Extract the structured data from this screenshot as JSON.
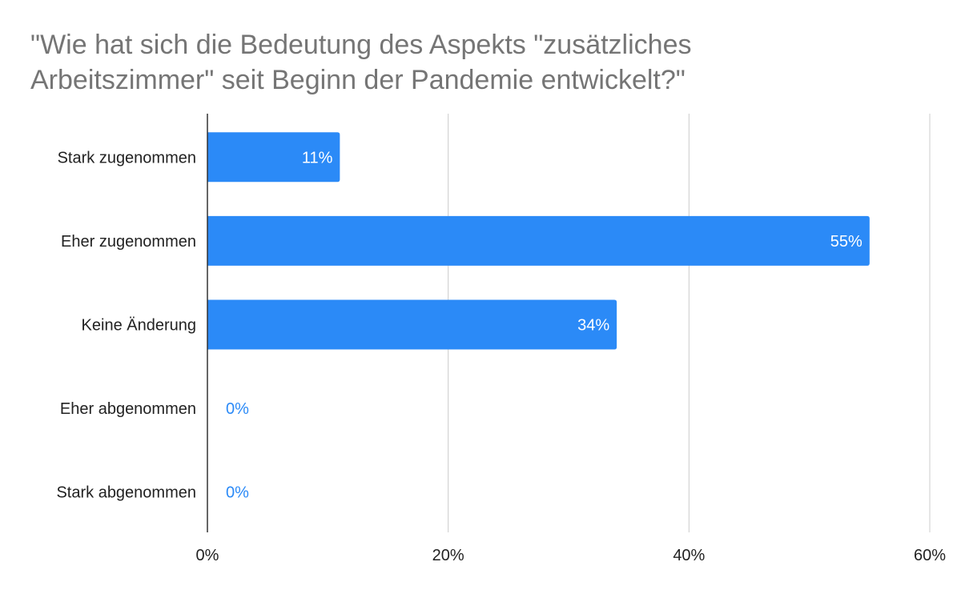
{
  "chart_data": {
    "type": "bar",
    "orientation": "horizontal",
    "title_lines": [
      "\"Wie hat sich die Bedeutung des Aspekts \"zusätzliches",
      "Arbeitszimmer\" seit Beginn der Pandemie entwickelt?\""
    ],
    "categories": [
      "Stark zugenommen",
      "Eher zugenommen",
      "Keine Änderung",
      "Eher abgenommen",
      "Stark abgenommen"
    ],
    "values": [
      11,
      55,
      34,
      0,
      0
    ],
    "data_labels": [
      "11%",
      "55%",
      "34%",
      "0%",
      "0%"
    ],
    "xlim": [
      0,
      60
    ],
    "x_ticks": [
      0,
      20,
      40,
      60
    ],
    "x_tick_labels": [
      "0%",
      "20%",
      "40%",
      "60%"
    ],
    "xlabel": "",
    "ylabel": "",
    "grid": true,
    "legend": "none",
    "colors": {
      "bar": "#2b8af7",
      "label_inside": "#ffffff",
      "label_outside": "#2b8af7",
      "title": "#757575",
      "grid": "#cccccc",
      "axis": "#333333"
    }
  }
}
